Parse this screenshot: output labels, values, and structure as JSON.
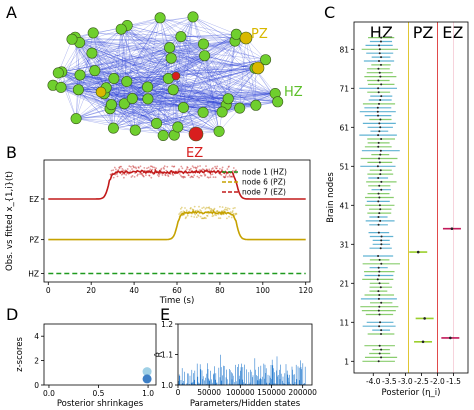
{
  "panels": {
    "A": {
      "label": "A",
      "labels": [
        "PZ",
        "HZ",
        "EZ"
      ],
      "colors": {
        "HZ": "#6fcf2e",
        "PZ": "#d8b800",
        "EZ": "#d81e1e",
        "edge": "#2a3fd6"
      }
    },
    "B": {
      "label": "B"
    },
    "C": {
      "label": "C"
    },
    "D": {
      "label": "D"
    },
    "E": {
      "label": "E"
    }
  },
  "chart_data": [
    {
      "panel": "B",
      "type": "line",
      "title": "",
      "xlabel": "Time (s)",
      "ylabel": "Obs. vs fitted x_{1,i}(t)",
      "xlim": [
        -2,
        122
      ],
      "xticks": [
        0,
        20,
        40,
        60,
        80,
        100,
        120
      ],
      "ytick_labels": [
        "EZ",
        "PZ",
        "HZ"
      ],
      "grid": false,
      "legend_position": "top-right",
      "series": [
        {
          "name": "node 1 (HZ)",
          "color": "#1f9a1f",
          "baseline": 0.0,
          "plateau_start": null,
          "plateau_end": null,
          "amplitude": 0.0
        },
        {
          "name": "node 6 (PZ)",
          "color": "#c6a200",
          "baseline": 1.0,
          "plateau_start": 60,
          "plateau_end": 88,
          "amplitude": 0.8
        },
        {
          "name": "node 7 (EZ)",
          "color": "#c21a1a",
          "baseline": 2.2,
          "plateau_start": 28,
          "plateau_end": 88,
          "amplitude": 0.8
        }
      ]
    },
    {
      "panel": "C",
      "type": "scatter",
      "title": "",
      "xlabel": "Posterior (η_i)",
      "ylabel": "Brain nodes",
      "xlim": [
        -4.6,
        -1.05
      ],
      "ylim": [
        -2,
        88
      ],
      "xticks": [
        -4.0,
        -3.5,
        -3.0,
        -2.5,
        -2.0,
        -1.5
      ],
      "yticks": [
        1,
        11,
        21,
        31,
        41,
        51,
        61,
        71,
        81
      ],
      "zones": [
        {
          "name": "HZ",
          "from": -4.6,
          "to": -2.9,
          "color": "#2fa02f"
        },
        {
          "name": "PZ",
          "from": -2.9,
          "to": -2.0,
          "color": "#d8b800"
        },
        {
          "name": "EZ",
          "from": -2.0,
          "to": -1.05,
          "color": "#d81e1e"
        }
      ],
      "hz_posterior_mean": -3.8,
      "special_nodes": [
        {
          "node": 6,
          "value": -2.45,
          "zone": "PZ"
        },
        {
          "node": 7,
          "value": -1.6,
          "zone": "EZ"
        },
        {
          "node": 12,
          "value": -2.4,
          "zone": "PZ"
        },
        {
          "node": 29,
          "value": -2.6,
          "zone": "PZ"
        },
        {
          "node": 35,
          "value": -1.55,
          "zone": "EZ"
        }
      ]
    },
    {
      "panel": "D",
      "type": "scatter",
      "title": "",
      "xlabel": "Posterior shrinkages",
      "ylabel": "z-scores",
      "xlim": [
        -0.05,
        1.08
      ],
      "ylim": [
        0,
        5
      ],
      "xticks": [
        0.0,
        0.5,
        1.0
      ],
      "yticks": [
        0,
        2,
        4
      ],
      "points": [
        {
          "x": 0.99,
          "y": 1.1,
          "color": "#9fd0e6"
        },
        {
          "x": 0.99,
          "y": 0.5,
          "color": "#3d7fc6"
        }
      ]
    },
    {
      "panel": "E",
      "type": "bar",
      "title": "",
      "xlabel": "Parameters/Hidden states",
      "ylabel": "R̂",
      "xlim": [
        0,
        215000
      ],
      "ylim": [
        1.0,
        1.2
      ],
      "xticks": [
        0,
        50000,
        100000,
        150000,
        200000
      ],
      "yticks": [
        1.0,
        1.1,
        1.2
      ],
      "n_params": 205000,
      "typical_max": 1.045
    }
  ]
}
